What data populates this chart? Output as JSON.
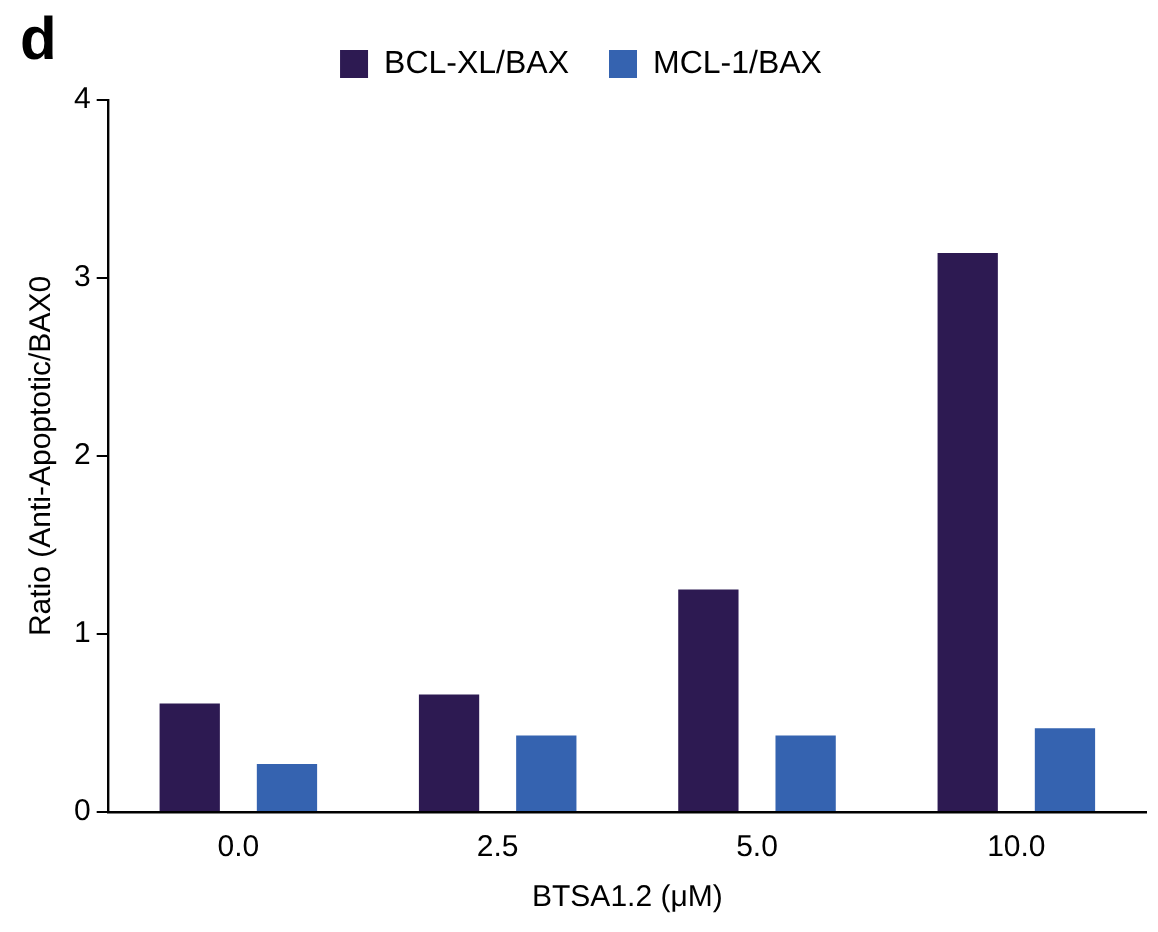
{
  "chart_data": {
    "type": "bar",
    "xlabel": "BTSA1.2 (μM)",
    "ylabel": "Ratio (Anti-Apoptotic/BAX0",
    "annotations": [
      "d"
    ],
    "categories": [
      "0.0",
      "2.5",
      "5.0",
      "10.0"
    ],
    "series": [
      {
        "name": "BCL-XL/BAX",
        "color": "#2d1a52",
        "values": [
          0.61,
          0.66,
          1.25,
          3.14
        ]
      },
      {
        "name": "MCL-1/BAX",
        "color": "#3563b0",
        "values": [
          0.27,
          0.43,
          0.43,
          0.47
        ]
      }
    ],
    "ylim": [
      0,
      4
    ],
    "yticks": [
      0,
      1,
      2,
      3,
      4
    ],
    "grid": false,
    "legend": "top"
  }
}
